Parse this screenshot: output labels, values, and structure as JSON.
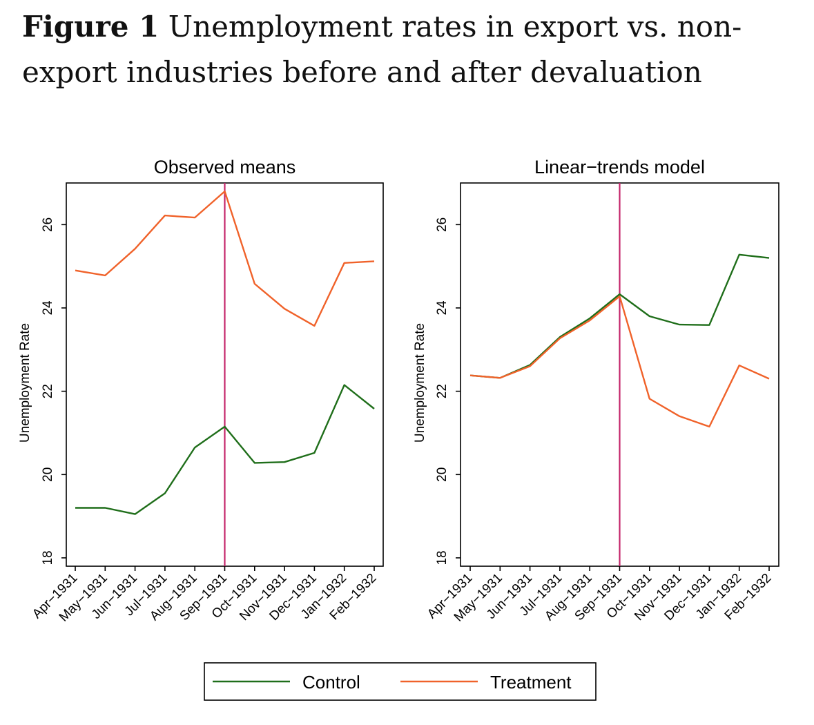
{
  "figure": {
    "label": "Figure 1",
    "title": "Unemployment rates in export vs. non-export industries before and after devaluation"
  },
  "colors": {
    "control": "#1f6e1a",
    "treatment": "#f0622a",
    "marker": "#c4256a",
    "frame": "#000000"
  },
  "legend": {
    "entries": [
      {
        "name": "Control",
        "color": "#1f6e1a"
      },
      {
        "name": "Treatment",
        "color": "#f0622a"
      }
    ],
    "placement": "bottom-center"
  },
  "chart_data": [
    {
      "type": "line",
      "title": "Observed means",
      "xlabel": "",
      "ylabel": "Unemployment Rate",
      "categories": [
        "Apr−1931",
        "May−1931",
        "Jun−1931",
        "Jul−1931",
        "Aug−1931",
        "Sep−1931",
        "Oct−1931",
        "Nov−1931",
        "Dec−1931",
        "Jan−1932",
        "Feb−1932"
      ],
      "ylim": [
        17.8,
        27.0
      ],
      "yticks": [
        18,
        20,
        22,
        24,
        26
      ],
      "vline_at": "Sep−1931",
      "grid": false,
      "series": [
        {
          "name": "Control",
          "values": [
            19.2,
            19.2,
            19.05,
            19.55,
            20.65,
            21.15,
            20.28,
            20.3,
            20.52,
            22.15,
            21.58
          ]
        },
        {
          "name": "Treatment",
          "values": [
            24.9,
            24.78,
            25.42,
            26.22,
            26.17,
            26.8,
            24.58,
            23.98,
            23.57,
            25.08,
            25.12
          ]
        }
      ]
    },
    {
      "type": "line",
      "title": "Linear−trends model",
      "xlabel": "",
      "ylabel": "Unemployment Rate",
      "categories": [
        "Apr−1931",
        "May−1931",
        "Jun−1931",
        "Jul−1931",
        "Aug−1931",
        "Sep−1931",
        "Oct−1931",
        "Nov−1931",
        "Dec−1931",
        "Jan−1932",
        "Feb−1932"
      ],
      "ylim": [
        17.8,
        27.0
      ],
      "yticks": [
        18,
        20,
        22,
        24,
        26
      ],
      "vline_at": "Sep−1931",
      "grid": false,
      "series": [
        {
          "name": "Control",
          "values": [
            22.38,
            22.32,
            22.63,
            23.3,
            23.75,
            24.33,
            23.8,
            23.6,
            23.59,
            25.28,
            25.2
          ]
        },
        {
          "name": "Treatment",
          "values": [
            22.38,
            22.32,
            22.6,
            23.27,
            23.7,
            24.28,
            21.82,
            21.4,
            21.15,
            22.62,
            22.3
          ]
        }
      ]
    }
  ]
}
